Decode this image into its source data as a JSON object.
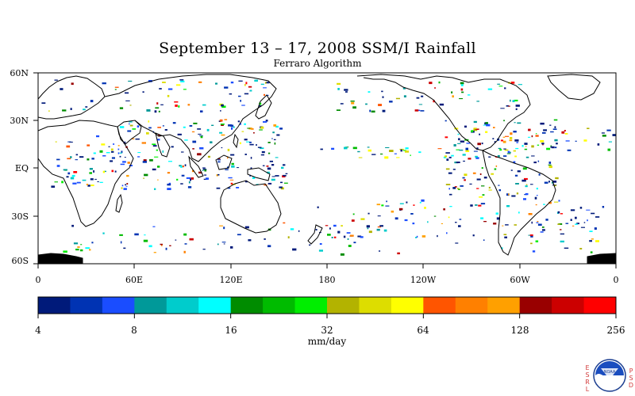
{
  "title": "September 13 – 17, 2008 SSM/I Rainfall",
  "subtitle": "Ferraro Algorithm",
  "lat_ticks": [
    "60N",
    "30N",
    "EQ",
    "30S",
    "60S"
  ],
  "lon_ticks": [
    "0",
    "60E",
    "120E",
    "180",
    "120W",
    "60W",
    "0"
  ],
  "colorbar": {
    "colors": [
      "#001a7a",
      "#0033b3",
      "#1a4dff",
      "#009999",
      "#00cccc",
      "#00ffff",
      "#008c00",
      "#00bb00",
      "#00ee00",
      "#b3b300",
      "#dddd00",
      "#ffff00",
      "#ff5500",
      "#ff8000",
      "#ffa000",
      "#990000",
      "#cc0000",
      "#ff0000"
    ],
    "tick_labels": [
      "4",
      "8",
      "16",
      "32",
      "64",
      "128",
      "256"
    ],
    "units": "mm/day"
  },
  "logo": {
    "name": "NOAA",
    "left_letters": "ESRL",
    "right_letters": "PSD"
  }
}
